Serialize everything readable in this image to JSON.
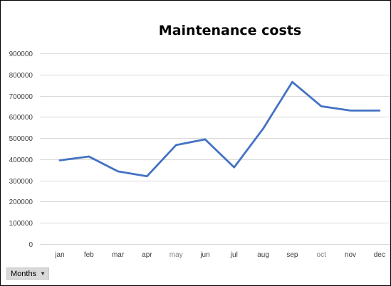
{
  "chart_data": {
    "type": "line",
    "title": "Maintenance costs",
    "xlabel": "",
    "ylabel": "",
    "categories": [
      "jan",
      "feb",
      "mar",
      "apr",
      "may",
      "jun",
      "jul",
      "aug",
      "sep",
      "oct",
      "nov",
      "dec"
    ],
    "series": [
      {
        "values": [
          395000,
          413000,
          343000,
          320000,
          467000,
          494000,
          362000,
          545000,
          765000,
          650000,
          630000,
          630000
        ]
      }
    ],
    "ylim": [
      0,
      900000
    ],
    "yticks": [
      "0",
      "100000",
      "200000",
      "300000",
      "400000",
      "500000",
      "600000",
      "700000",
      "800000",
      "900000"
    ],
    "grid": true,
    "legend": "none",
    "line_color": "#4472c4",
    "grid_color": "#d9d9d9"
  },
  "field_button": {
    "label": "Months",
    "icon": "caret-down-icon"
  }
}
